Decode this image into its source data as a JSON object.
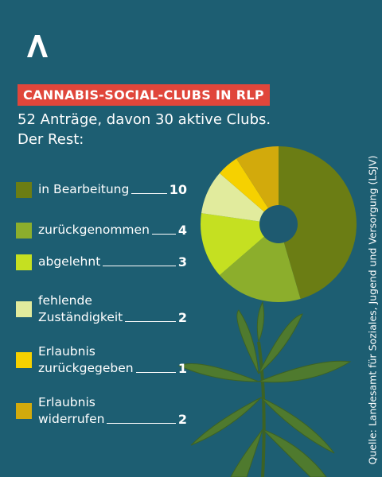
{
  "chart_data": {
    "type": "pie",
    "title": "CANNABIS-SOCIAL-CLUBS IN RLP",
    "subtitle": "52 Anträge, davon 30 aktive Clubs.\nDer Rest:",
    "categories": [
      "in Bearbeitung",
      "zurückgenommen",
      "abgelehnt",
      "fehlende\nZuständigkeit",
      "Erlaubnis\nzurückgegeben",
      "Erlaubnis\nwiderrufen"
    ],
    "values": [
      10,
      4,
      3,
      2,
      1,
      2
    ],
    "colors": [
      "#6b7d14",
      "#8cae2c",
      "#c5e021",
      "#e1eb9d",
      "#f6d100",
      "#d2aa0c"
    ],
    "source": "Quelle: Landesamt für Soziales, Jugend und Versorgung (LSJV)"
  }
}
